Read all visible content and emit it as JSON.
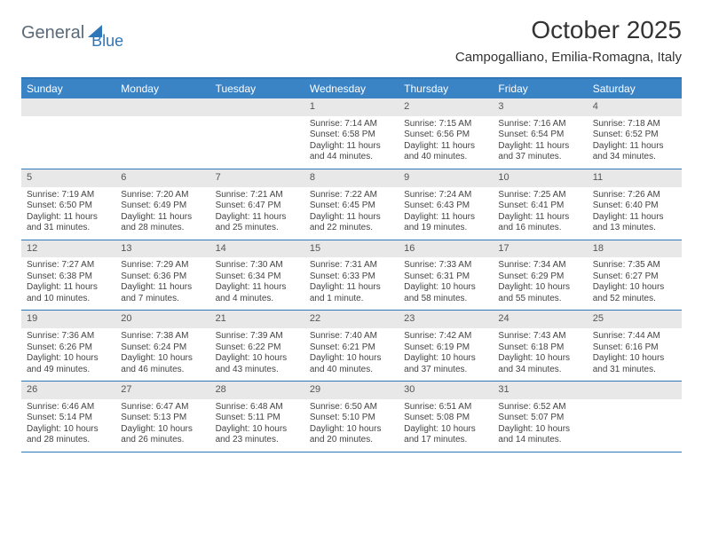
{
  "logo": {
    "text1": "General",
    "text2": "Blue"
  },
  "title": "October 2025",
  "location": "Campogalliano, Emilia-Romagna, Italy",
  "colors": {
    "header_bg": "#3a83c5",
    "border": "#2f77b8",
    "daynum_bg": "#e8e8e8",
    "text": "#333333"
  },
  "weekdays": [
    "Sunday",
    "Monday",
    "Tuesday",
    "Wednesday",
    "Thursday",
    "Friday",
    "Saturday"
  ],
  "weeks": [
    [
      {
        "num": "",
        "sunrise": "",
        "sunset": "",
        "daylight1": "",
        "daylight2": ""
      },
      {
        "num": "",
        "sunrise": "",
        "sunset": "",
        "daylight1": "",
        "daylight2": ""
      },
      {
        "num": "",
        "sunrise": "",
        "sunset": "",
        "daylight1": "",
        "daylight2": ""
      },
      {
        "num": "1",
        "sunrise": "Sunrise: 7:14 AM",
        "sunset": "Sunset: 6:58 PM",
        "daylight1": "Daylight: 11 hours",
        "daylight2": "and 44 minutes."
      },
      {
        "num": "2",
        "sunrise": "Sunrise: 7:15 AM",
        "sunset": "Sunset: 6:56 PM",
        "daylight1": "Daylight: 11 hours",
        "daylight2": "and 40 minutes."
      },
      {
        "num": "3",
        "sunrise": "Sunrise: 7:16 AM",
        "sunset": "Sunset: 6:54 PM",
        "daylight1": "Daylight: 11 hours",
        "daylight2": "and 37 minutes."
      },
      {
        "num": "4",
        "sunrise": "Sunrise: 7:18 AM",
        "sunset": "Sunset: 6:52 PM",
        "daylight1": "Daylight: 11 hours",
        "daylight2": "and 34 minutes."
      }
    ],
    [
      {
        "num": "5",
        "sunrise": "Sunrise: 7:19 AM",
        "sunset": "Sunset: 6:50 PM",
        "daylight1": "Daylight: 11 hours",
        "daylight2": "and 31 minutes."
      },
      {
        "num": "6",
        "sunrise": "Sunrise: 7:20 AM",
        "sunset": "Sunset: 6:49 PM",
        "daylight1": "Daylight: 11 hours",
        "daylight2": "and 28 minutes."
      },
      {
        "num": "7",
        "sunrise": "Sunrise: 7:21 AM",
        "sunset": "Sunset: 6:47 PM",
        "daylight1": "Daylight: 11 hours",
        "daylight2": "and 25 minutes."
      },
      {
        "num": "8",
        "sunrise": "Sunrise: 7:22 AM",
        "sunset": "Sunset: 6:45 PM",
        "daylight1": "Daylight: 11 hours",
        "daylight2": "and 22 minutes."
      },
      {
        "num": "9",
        "sunrise": "Sunrise: 7:24 AM",
        "sunset": "Sunset: 6:43 PM",
        "daylight1": "Daylight: 11 hours",
        "daylight2": "and 19 minutes."
      },
      {
        "num": "10",
        "sunrise": "Sunrise: 7:25 AM",
        "sunset": "Sunset: 6:41 PM",
        "daylight1": "Daylight: 11 hours",
        "daylight2": "and 16 minutes."
      },
      {
        "num": "11",
        "sunrise": "Sunrise: 7:26 AM",
        "sunset": "Sunset: 6:40 PM",
        "daylight1": "Daylight: 11 hours",
        "daylight2": "and 13 minutes."
      }
    ],
    [
      {
        "num": "12",
        "sunrise": "Sunrise: 7:27 AM",
        "sunset": "Sunset: 6:38 PM",
        "daylight1": "Daylight: 11 hours",
        "daylight2": "and 10 minutes."
      },
      {
        "num": "13",
        "sunrise": "Sunrise: 7:29 AM",
        "sunset": "Sunset: 6:36 PM",
        "daylight1": "Daylight: 11 hours",
        "daylight2": "and 7 minutes."
      },
      {
        "num": "14",
        "sunrise": "Sunrise: 7:30 AM",
        "sunset": "Sunset: 6:34 PM",
        "daylight1": "Daylight: 11 hours",
        "daylight2": "and 4 minutes."
      },
      {
        "num": "15",
        "sunrise": "Sunrise: 7:31 AM",
        "sunset": "Sunset: 6:33 PM",
        "daylight1": "Daylight: 11 hours",
        "daylight2": "and 1 minute."
      },
      {
        "num": "16",
        "sunrise": "Sunrise: 7:33 AM",
        "sunset": "Sunset: 6:31 PM",
        "daylight1": "Daylight: 10 hours",
        "daylight2": "and 58 minutes."
      },
      {
        "num": "17",
        "sunrise": "Sunrise: 7:34 AM",
        "sunset": "Sunset: 6:29 PM",
        "daylight1": "Daylight: 10 hours",
        "daylight2": "and 55 minutes."
      },
      {
        "num": "18",
        "sunrise": "Sunrise: 7:35 AM",
        "sunset": "Sunset: 6:27 PM",
        "daylight1": "Daylight: 10 hours",
        "daylight2": "and 52 minutes."
      }
    ],
    [
      {
        "num": "19",
        "sunrise": "Sunrise: 7:36 AM",
        "sunset": "Sunset: 6:26 PM",
        "daylight1": "Daylight: 10 hours",
        "daylight2": "and 49 minutes."
      },
      {
        "num": "20",
        "sunrise": "Sunrise: 7:38 AM",
        "sunset": "Sunset: 6:24 PM",
        "daylight1": "Daylight: 10 hours",
        "daylight2": "and 46 minutes."
      },
      {
        "num": "21",
        "sunrise": "Sunrise: 7:39 AM",
        "sunset": "Sunset: 6:22 PM",
        "daylight1": "Daylight: 10 hours",
        "daylight2": "and 43 minutes."
      },
      {
        "num": "22",
        "sunrise": "Sunrise: 7:40 AM",
        "sunset": "Sunset: 6:21 PM",
        "daylight1": "Daylight: 10 hours",
        "daylight2": "and 40 minutes."
      },
      {
        "num": "23",
        "sunrise": "Sunrise: 7:42 AM",
        "sunset": "Sunset: 6:19 PM",
        "daylight1": "Daylight: 10 hours",
        "daylight2": "and 37 minutes."
      },
      {
        "num": "24",
        "sunrise": "Sunrise: 7:43 AM",
        "sunset": "Sunset: 6:18 PM",
        "daylight1": "Daylight: 10 hours",
        "daylight2": "and 34 minutes."
      },
      {
        "num": "25",
        "sunrise": "Sunrise: 7:44 AM",
        "sunset": "Sunset: 6:16 PM",
        "daylight1": "Daylight: 10 hours",
        "daylight2": "and 31 minutes."
      }
    ],
    [
      {
        "num": "26",
        "sunrise": "Sunrise: 6:46 AM",
        "sunset": "Sunset: 5:14 PM",
        "daylight1": "Daylight: 10 hours",
        "daylight2": "and 28 minutes."
      },
      {
        "num": "27",
        "sunrise": "Sunrise: 6:47 AM",
        "sunset": "Sunset: 5:13 PM",
        "daylight1": "Daylight: 10 hours",
        "daylight2": "and 26 minutes."
      },
      {
        "num": "28",
        "sunrise": "Sunrise: 6:48 AM",
        "sunset": "Sunset: 5:11 PM",
        "daylight1": "Daylight: 10 hours",
        "daylight2": "and 23 minutes."
      },
      {
        "num": "29",
        "sunrise": "Sunrise: 6:50 AM",
        "sunset": "Sunset: 5:10 PM",
        "daylight1": "Daylight: 10 hours",
        "daylight2": "and 20 minutes."
      },
      {
        "num": "30",
        "sunrise": "Sunrise: 6:51 AM",
        "sunset": "Sunset: 5:08 PM",
        "daylight1": "Daylight: 10 hours",
        "daylight2": "and 17 minutes."
      },
      {
        "num": "31",
        "sunrise": "Sunrise: 6:52 AM",
        "sunset": "Sunset: 5:07 PM",
        "daylight1": "Daylight: 10 hours",
        "daylight2": "and 14 minutes."
      },
      {
        "num": "",
        "sunrise": "",
        "sunset": "",
        "daylight1": "",
        "daylight2": ""
      }
    ]
  ]
}
